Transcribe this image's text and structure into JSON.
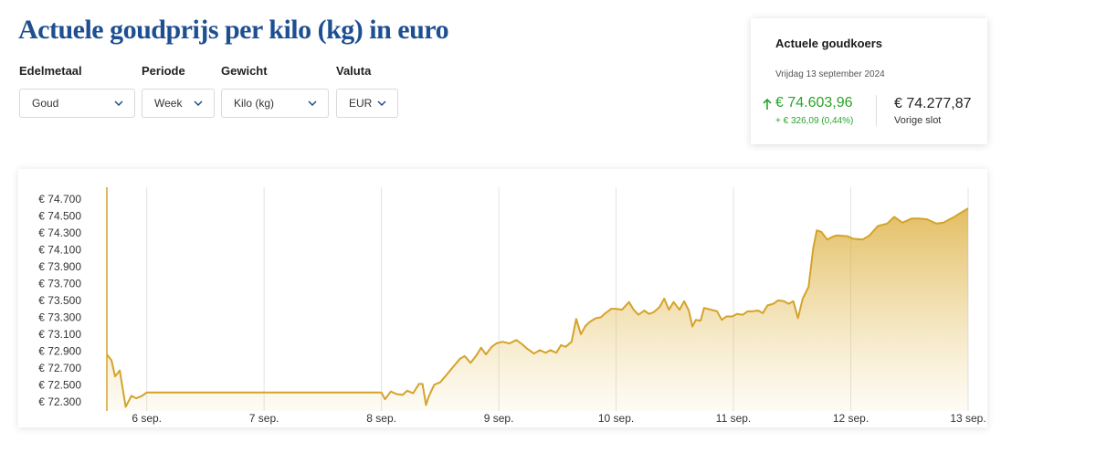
{
  "header": {
    "title": "Actuele goudprijs per kilo (kg) in euro"
  },
  "filters": [
    {
      "label": "Edelmetaal",
      "value": "Goud"
    },
    {
      "label": "Periode",
      "value": "Week"
    },
    {
      "label": "Gewicht",
      "value": "Kilo (kg)"
    },
    {
      "label": "Valuta",
      "value": "EUR"
    }
  ],
  "rate_card": {
    "title": "Actuele goudkoers",
    "date": "Vrijdag 13 september 2024",
    "current": "€ 74.603,96",
    "change": "+ € 326,09 (0,44%)",
    "previous": "€ 74.277,87",
    "previous_label": "Vorige slot"
  },
  "chart_data": {
    "type": "area",
    "color": "#d4a32a",
    "grid": "x",
    "x": [
      5.66,
      5.7,
      5.73,
      5.77,
      5.82,
      5.87,
      5.91,
      5.96,
      6.0,
      8.0,
      8.03,
      8.08,
      8.13,
      8.18,
      8.22,
      8.27,
      8.32,
      8.35,
      8.38,
      8.4,
      8.45,
      8.5,
      8.55,
      8.61,
      8.67,
      8.71,
      8.76,
      8.81,
      8.85,
      8.89,
      8.94,
      8.98,
      9.03,
      9.09,
      9.15,
      9.2,
      9.24,
      9.3,
      9.35,
      9.4,
      9.44,
      9.49,
      9.53,
      9.57,
      9.62,
      9.66,
      9.7,
      9.74,
      9.78,
      9.83,
      9.87,
      9.91,
      9.96,
      10.0,
      10.05,
      10.11,
      10.15,
      10.19,
      10.24,
      10.28,
      10.32,
      10.37,
      10.41,
      10.45,
      10.49,
      10.54,
      10.58,
      10.62,
      10.65,
      10.68,
      10.72,
      10.75,
      10.81,
      10.86,
      10.9,
      10.94,
      10.99,
      11.03,
      11.08,
      11.12,
      11.16,
      11.21,
      11.25,
      11.29,
      11.34,
      11.38,
      11.43,
      11.47,
      11.51,
      11.55,
      11.59,
      11.64,
      11.68,
      11.71,
      11.75,
      11.8,
      11.84,
      11.88,
      11.97,
      12.02,
      12.1,
      12.16,
      12.23,
      12.31,
      12.37,
      12.44,
      12.52,
      12.58,
      12.65,
      12.73,
      12.79,
      12.87,
      13.0
    ],
    "values": [
      72870,
      72800,
      72610,
      72680,
      72250,
      72380,
      72350,
      72380,
      72420,
      72420,
      72340,
      72430,
      72400,
      72390,
      72440,
      72410,
      72520,
      72520,
      72270,
      72360,
      72510,
      72540,
      72620,
      72720,
      72820,
      72850,
      72770,
      72860,
      72950,
      72870,
      72960,
      73000,
      73020,
      73000,
      73040,
      72990,
      72940,
      72880,
      72920,
      72890,
      72920,
      72890,
      72980,
      72960,
      73020,
      73290,
      73110,
      73210,
      73260,
      73300,
      73310,
      73360,
      73410,
      73410,
      73400,
      73490,
      73400,
      73340,
      73390,
      73350,
      73370,
      73430,
      73530,
      73400,
      73490,
      73400,
      73500,
      73390,
      73200,
      73280,
      73270,
      73420,
      73400,
      73380,
      73280,
      73320,
      73320,
      73350,
      73340,
      73380,
      73380,
      73390,
      73360,
      73450,
      73470,
      73510,
      73500,
      73470,
      73500,
      73300,
      73530,
      73670,
      74130,
      74340,
      74320,
      74230,
      74260,
      74280,
      74270,
      74240,
      74230,
      74280,
      74390,
      74420,
      74500,
      74430,
      74480,
      74480,
      74470,
      74420,
      74430,
      74490,
      74600
    ],
    "xlim": [
      5.66,
      13.0
    ],
    "xticks": [
      {
        "value": 6,
        "label": "6 sep."
      },
      {
        "value": 7,
        "label": "7 sep."
      },
      {
        "value": 8,
        "label": "8 sep."
      },
      {
        "value": 9,
        "label": "9 sep."
      },
      {
        "value": 10,
        "label": "10 sep."
      },
      {
        "value": 11,
        "label": "11 sep."
      },
      {
        "value": 12,
        "label": "12 sep."
      },
      {
        "value": 13,
        "label": "13 sep."
      }
    ],
    "ylim": [
      72200,
      74850
    ],
    "yticks": [
      {
        "value": 72300,
        "label": "€ 72.300"
      },
      {
        "value": 72500,
        "label": "€ 72.500"
      },
      {
        "value": 72700,
        "label": "€ 72.700"
      },
      {
        "value": 72900,
        "label": "€ 72.900"
      },
      {
        "value": 73100,
        "label": "€ 73.100"
      },
      {
        "value": 73300,
        "label": "€ 73.300"
      },
      {
        "value": 73500,
        "label": "€ 73.500"
      },
      {
        "value": 73700,
        "label": "€ 73.700"
      },
      {
        "value": 73900,
        "label": "€ 73.900"
      },
      {
        "value": 74100,
        "label": "€ 74.100"
      },
      {
        "value": 74300,
        "label": "€ 74.300"
      },
      {
        "value": 74500,
        "label": "€ 74.500"
      },
      {
        "value": 74700,
        "label": "€ 74.700"
      }
    ]
  }
}
